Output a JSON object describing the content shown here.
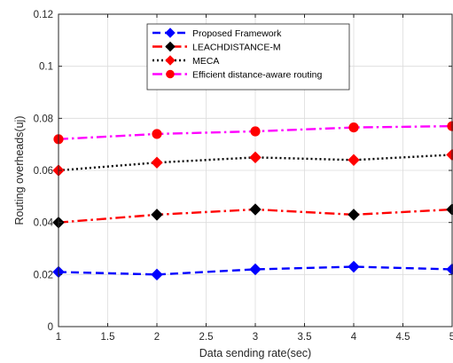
{
  "chart_data": {
    "type": "line",
    "title": "",
    "xlabel": "Data sending rate(sec)",
    "ylabel": "Routing overheads(uj)",
    "xlim": [
      1,
      5
    ],
    "ylim": [
      0,
      0.12
    ],
    "x_ticks": [
      "1",
      "1.5",
      "2",
      "2.5",
      "3",
      "3.5",
      "4",
      "4.5",
      "5"
    ],
    "y_ticks": [
      "0",
      "0.02",
      "0.04",
      "0.06",
      "0.08",
      "0.1",
      "0.12"
    ],
    "grid": true,
    "legend_position": "top-center",
    "x": [
      1,
      2,
      3,
      4,
      5
    ],
    "series": [
      {
        "name": "Proposed Framework",
        "values": [
          0.021,
          0.02,
          0.022,
          0.023,
          0.022
        ],
        "color": "#0000ff",
        "line_style": "dashed",
        "marker": "diamond",
        "marker_color": "#0000ff"
      },
      {
        "name": "LEACHDISTANCE-M",
        "values": [
          0.04,
          0.043,
          0.045,
          0.043,
          0.045
        ],
        "color": "#ff0000",
        "line_style": "dashdot",
        "marker": "diamond",
        "marker_color": "#000000"
      },
      {
        "name": "MECA",
        "values": [
          0.06,
          0.063,
          0.065,
          0.064,
          0.066
        ],
        "color": "#000000",
        "line_style": "dotted",
        "marker": "diamond",
        "marker_color": "#ff0000"
      },
      {
        "name": "Efficient distance-aware routing",
        "values": [
          0.072,
          0.074,
          0.075,
          0.0765,
          0.077
        ],
        "color": "#ff00ff",
        "line_style": "dashdot",
        "marker": "circle",
        "marker_color": "#ff0000"
      }
    ]
  }
}
